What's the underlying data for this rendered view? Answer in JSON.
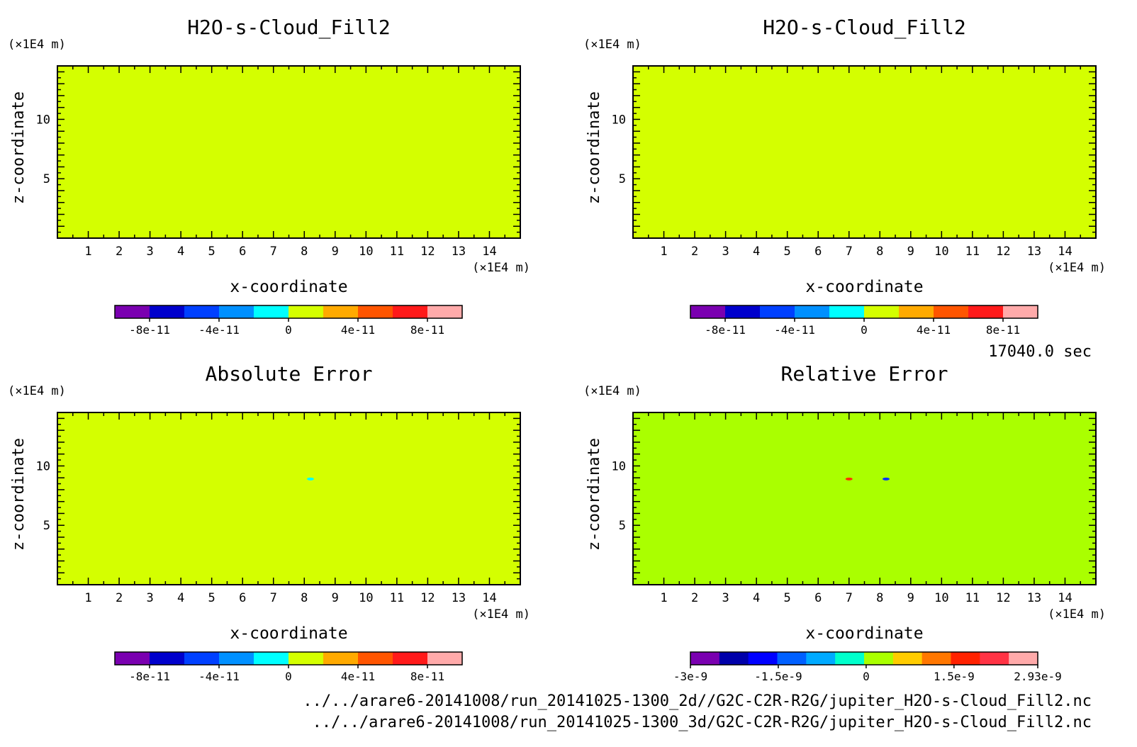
{
  "time_label": "17040.0 sec",
  "footer_paths": [
    "../../arare6-20141008/run_20141025-1300_2d//G2C-C2R-R2G/jupiter_H2O-s-Cloud_Fill2.nc",
    "../../arare6-20141008/run_20141025-1300_3d/G2C-C2R-R2G/jupiter_H2O-s-Cloud_Fill2.nc"
  ],
  "colors": {
    "field_fill": "#d4ff00",
    "relative_error_fill": "#aaff00"
  },
  "chart_data": [
    {
      "type": "heatmap",
      "title": "H2O-s-Cloud_Fill2",
      "xlabel": "x-coordinate",
      "ylabel": "z-coordinate",
      "x_unit": "(×1E4 m)",
      "y_unit": "(×1E4 m)",
      "xlim": [
        0,
        15
      ],
      "ylim": [
        0,
        14.5
      ],
      "x_ticks": [
        1,
        2,
        3,
        4,
        5,
        6,
        7,
        8,
        9,
        10,
        11,
        12,
        13,
        14
      ],
      "y_ticks": [
        5,
        10
      ],
      "fill_color": "#d4ff00",
      "field_value": 0,
      "spots": [],
      "colorbar": {
        "colors": [
          "#7a00b0",
          "#0000cc",
          "#0040ff",
          "#0090ff",
          "#00ffff",
          "#d4ff00",
          "#ffaa00",
          "#ff5500",
          "#ff1a1a",
          "#ffaaaa"
        ],
        "tick_labels": [
          "-8e-11",
          "-4e-11",
          "0",
          "4e-11",
          "8e-11"
        ],
        "tick_values": [
          -8e-11,
          -4e-11,
          0,
          4e-11,
          8e-11
        ],
        "range": [
          -1e-10,
          1e-10
        ]
      }
    },
    {
      "type": "heatmap",
      "title": "H2O-s-Cloud_Fill2",
      "xlabel": "x-coordinate",
      "ylabel": "z-coordinate",
      "x_unit": "(×1E4 m)",
      "y_unit": "(×1E4 m)",
      "xlim": [
        0,
        15
      ],
      "ylim": [
        0,
        14.5
      ],
      "x_ticks": [
        1,
        2,
        3,
        4,
        5,
        6,
        7,
        8,
        9,
        10,
        11,
        12,
        13,
        14
      ],
      "y_ticks": [
        5,
        10
      ],
      "fill_color": "#d4ff00",
      "field_value": 0,
      "spots": [],
      "colorbar": {
        "colors": [
          "#7a00b0",
          "#0000cc",
          "#0040ff",
          "#0090ff",
          "#00ffff",
          "#d4ff00",
          "#ffaa00",
          "#ff5500",
          "#ff1a1a",
          "#ffaaaa"
        ],
        "tick_labels": [
          "-8e-11",
          "-4e-11",
          "0",
          "4e-11",
          "8e-11"
        ],
        "tick_values": [
          -8e-11,
          -4e-11,
          0,
          4e-11,
          8e-11
        ],
        "range": [
          -1e-10,
          1e-10
        ]
      }
    },
    {
      "type": "heatmap",
      "title": "Absolute Error",
      "xlabel": "x-coordinate",
      "ylabel": "z-coordinate",
      "x_unit": "(×1E4 m)",
      "y_unit": "(×1E4 m)",
      "xlim": [
        0,
        15
      ],
      "ylim": [
        0,
        14.5
      ],
      "x_ticks": [
        1,
        2,
        3,
        4,
        5,
        6,
        7,
        8,
        9,
        10,
        11,
        12,
        13,
        14
      ],
      "y_ticks": [
        5,
        10
      ],
      "fill_color": "#d4ff00",
      "field_value": 0,
      "spots": [
        {
          "x": 8.2,
          "z": 8.9,
          "color": "#00ffff"
        }
      ],
      "colorbar": {
        "colors": [
          "#7a00b0",
          "#0000cc",
          "#0040ff",
          "#0090ff",
          "#00ffff",
          "#d4ff00",
          "#ffaa00",
          "#ff5500",
          "#ff1a1a",
          "#ffaaaa"
        ],
        "tick_labels": [
          "-8e-11",
          "-4e-11",
          "0",
          "4e-11",
          "8e-11"
        ],
        "tick_values": [
          -8e-11,
          -4e-11,
          0,
          4e-11,
          8e-11
        ],
        "range": [
          -1e-10,
          1e-10
        ]
      }
    },
    {
      "type": "heatmap",
      "title": "Relative Error",
      "xlabel": "x-coordinate",
      "ylabel": "z-coordinate",
      "x_unit": "(×1E4 m)",
      "y_unit": "(×1E4 m)",
      "xlim": [
        0,
        15
      ],
      "ylim": [
        0,
        14.5
      ],
      "x_ticks": [
        1,
        2,
        3,
        4,
        5,
        6,
        7,
        8,
        9,
        10,
        11,
        12,
        13,
        14
      ],
      "y_ticks": [
        5,
        10
      ],
      "fill_color": "#aaff00",
      "field_value": 0,
      "spots": [
        {
          "x": 7.0,
          "z": 8.9,
          "color": "#ff3300"
        },
        {
          "x": 8.2,
          "z": 8.9,
          "color": "#0033ff"
        }
      ],
      "colorbar": {
        "colors": [
          "#7a00b0",
          "#0000aa",
          "#0000ff",
          "#0060ff",
          "#00aaff",
          "#00ffcc",
          "#aaff00",
          "#ffcc00",
          "#ff7700",
          "#ff2200",
          "#ff3344",
          "#ffaaaa"
        ],
        "tick_labels": [
          "-3e-9",
          "-1.5e-9",
          "0",
          "1.5e-9",
          "2.93e-9"
        ],
        "tick_values": [
          -3e-09,
          -1.5e-09,
          0,
          1.5e-09,
          2.93e-09
        ],
        "range": [
          -3e-09,
          2.93e-09
        ]
      }
    }
  ]
}
